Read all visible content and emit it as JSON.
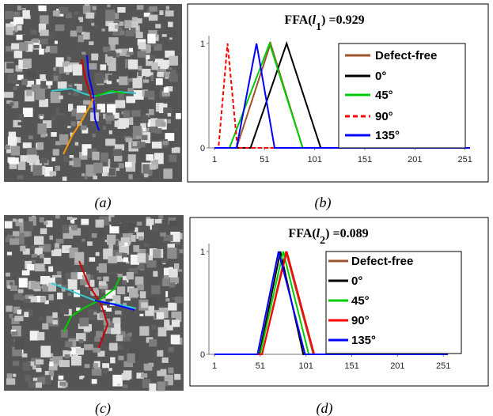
{
  "captions": [
    "(a)",
    "(b)",
    "(c)",
    "(d)"
  ],
  "chart_data": [
    {
      "type": "line",
      "title": [
        "FFA(",
        "l",
        "1",
        ") =0.929"
      ],
      "xlim": [
        1,
        256
      ],
      "xticks": [
        1,
        51,
        101,
        151,
        201,
        251
      ],
      "ylim": [
        0,
        1
      ],
      "yticks": [
        0,
        1
      ],
      "series": [
        {
          "name": "Defect-free",
          "color": "#a0522d",
          "x": [
            1,
            23,
            57,
            89,
            256
          ],
          "values": [
            0,
            0,
            1,
            0,
            0
          ]
        },
        {
          "name": "0°",
          "color": "#000000",
          "x": [
            1,
            37,
            73,
            107,
            256
          ],
          "values": [
            0,
            0,
            1,
            0,
            0
          ]
        },
        {
          "name": "45°",
          "color": "#00cc00",
          "x": [
            1,
            16,
            56,
            89,
            256
          ],
          "values": [
            0,
            0,
            1,
            0,
            0
          ]
        },
        {
          "name": "90°",
          "color": "#ff0000",
          "dashed": true,
          "x": [
            1,
            5,
            14,
            24,
            256
          ],
          "values": [
            0,
            0,
            1,
            0,
            0
          ]
        },
        {
          "name": "135°",
          "color": "#0000ff",
          "x": [
            1,
            23,
            43,
            61,
            256
          ],
          "values": [
            0,
            0,
            1,
            0,
            0
          ]
        }
      ]
    },
    {
      "type": "line",
      "title": [
        "FFA(",
        "l",
        "2",
        ") =0.089"
      ],
      "xlim": [
        1,
        256
      ],
      "xticks": [
        1,
        51,
        101,
        151,
        201,
        251
      ],
      "ylim": [
        0,
        1
      ],
      "yticks": [
        0,
        1
      ],
      "series": [
        {
          "name": "Defect-free",
          "color": "#a0522d",
          "x": [
            1,
            53,
            79,
            109,
            256
          ],
          "values": [
            0,
            0,
            1,
            0,
            0
          ]
        },
        {
          "name": "0°",
          "color": "#000000",
          "x": [
            1,
            50,
            73,
            98,
            256
          ],
          "values": [
            0,
            0,
            1,
            0,
            0
          ]
        },
        {
          "name": "45°",
          "color": "#00cc00",
          "x": [
            1,
            51,
            76,
            104,
            256
          ],
          "values": [
            0,
            0,
            1,
            0,
            0
          ]
        },
        {
          "name": "90°",
          "color": "#ff0000",
          "x": [
            1,
            53,
            80,
            110,
            256
          ],
          "values": [
            0,
            0,
            1,
            0,
            0
          ]
        },
        {
          "name": "135°",
          "color": "#0000ff",
          "x": [
            1,
            48,
            71,
            100,
            256
          ],
          "values": [
            0,
            0,
            1,
            0,
            0
          ]
        }
      ]
    }
  ]
}
